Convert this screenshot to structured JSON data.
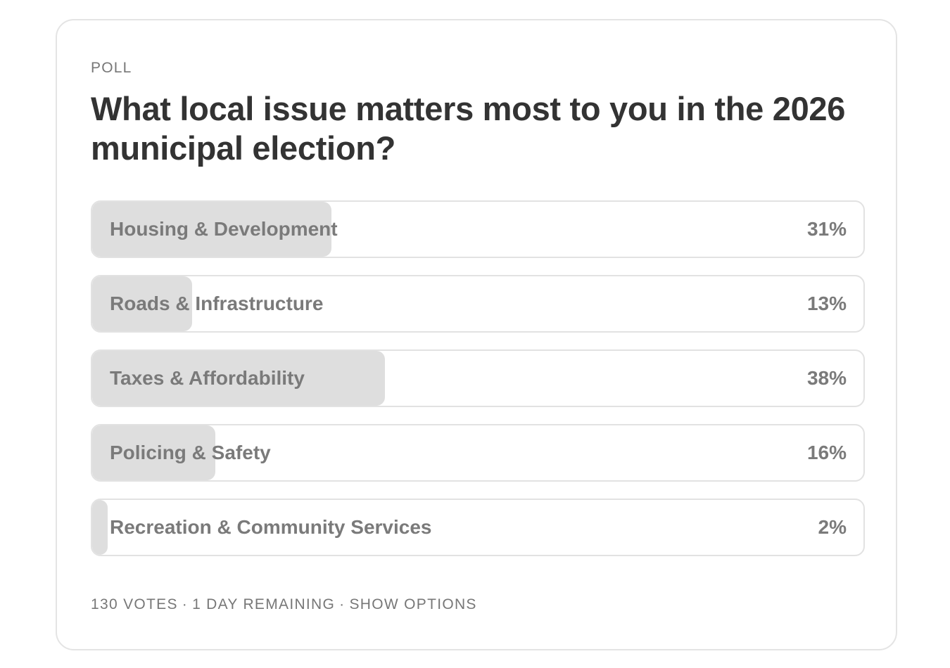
{
  "poll": {
    "kicker": "POLL",
    "question": "What local issue matters most to you in the 2026 municipal election?",
    "options": [
      {
        "label": "Housing & Development",
        "percent_label": "31%",
        "percent": 31
      },
      {
        "label": "Roads & Infrastructure",
        "percent_label": "13%",
        "percent": 13
      },
      {
        "label": "Taxes & Affordability",
        "percent_label": "38%",
        "percent": 38
      },
      {
        "label": "Policing & Safety",
        "percent_label": "16%",
        "percent": 16
      },
      {
        "label": "Recreation & Community Services",
        "percent_label": "2%",
        "percent": 2
      }
    ],
    "footer": {
      "votes": "130 VOTES",
      "separator": "·",
      "remaining": "1 DAY REMAINING",
      "show_options": "SHOW OPTIONS"
    }
  },
  "colors": {
    "fill": "#dedede",
    "border": "#e2e2e2",
    "text_muted": "#7a7a7a",
    "title": "#333333"
  }
}
